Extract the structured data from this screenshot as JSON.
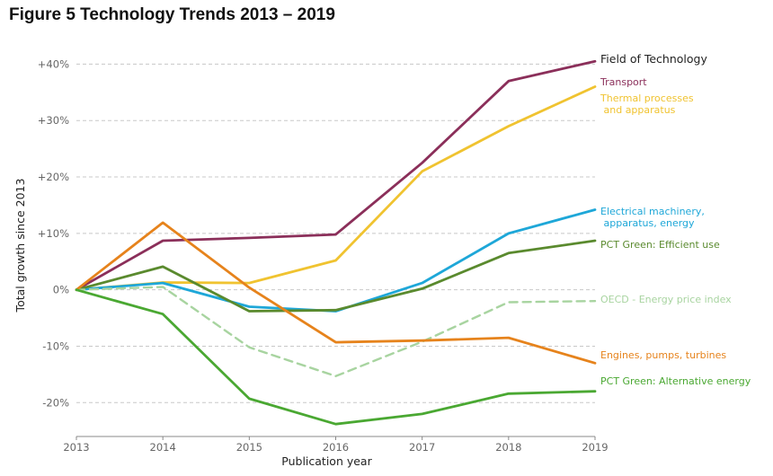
{
  "title": "Figure 5 Technology Trends 2013 – 2019",
  "chart_data": {
    "type": "line",
    "xlabel": "Publication year",
    "ylabel": "Total growth since 2013",
    "x": [
      2013,
      2014,
      2015,
      2016,
      2017,
      2018,
      2019
    ],
    "xlim": [
      2013,
      2019
    ],
    "ylim": [
      -26,
      45
    ],
    "yticks": [
      {
        "value": 40,
        "label": "+40%"
      },
      {
        "value": 30,
        "label": "+30%"
      },
      {
        "value": 20,
        "label": "+20%"
      },
      {
        "value": 10,
        "label": "+10%"
      },
      {
        "value": 0,
        "label": "0%"
      },
      {
        "value": -10,
        "label": "-10%"
      },
      {
        "value": -20,
        "label": "-20%"
      }
    ],
    "grid": true,
    "legend_title": "Field of Technology",
    "legend_placement": "right, labels at line ends",
    "series": [
      {
        "name": "Transport",
        "label_lines": [
          "Transport"
        ],
        "color": "#8b2f5a",
        "dashed": false,
        "values": [
          0,
          8.7,
          9.2,
          9.8,
          22.5,
          37,
          40.5
        ]
      },
      {
        "name": "Thermal processes and apparatus",
        "label_lines": [
          "Thermal processes",
          " and apparatus"
        ],
        "color": "#f0c330",
        "dashed": false,
        "values": [
          0,
          1.3,
          1.2,
          5.2,
          21,
          29,
          36
        ]
      },
      {
        "name": "Electrical machinery, apparatus, energy",
        "label_lines": [
          "Electrical machinery,",
          " apparatus, energy"
        ],
        "color": "#1ea7d8",
        "dashed": false,
        "values": [
          0,
          1.2,
          -3.0,
          -3.8,
          1.2,
          10,
          14.2
        ]
      },
      {
        "name": "PCT Green: Efficient use",
        "label_lines": [
          "PCT Green: Efficient use"
        ],
        "color": "#5a8a2e",
        "dashed": false,
        "values": [
          0,
          4.1,
          -3.8,
          -3.6,
          0.2,
          6.5,
          8.7
        ]
      },
      {
        "name": "OECD - Energy price index",
        "label_lines": [
          "OECD - Energy price index"
        ],
        "color": "#a8d4a0",
        "dashed": true,
        "values": [
          0,
          0.5,
          -10.2,
          -15.3,
          -9.2,
          -2.2,
          -2.0
        ]
      },
      {
        "name": "Engines, pumps, turbines",
        "label_lines": [
          "Engines, pumps, turbines"
        ],
        "color": "#e6831c",
        "dashed": false,
        "values": [
          0,
          11.9,
          0.4,
          -9.3,
          -9.0,
          -8.5,
          -13.0
        ]
      },
      {
        "name": "PCT Green: Alternative energy",
        "label_lines": [
          "PCT Green: Alternative energy"
        ],
        "color": "#4aa832",
        "dashed": false,
        "values": [
          0,
          -4.3,
          -19.3,
          -23.8,
          -22,
          -18.4,
          -18.0
        ]
      }
    ]
  }
}
